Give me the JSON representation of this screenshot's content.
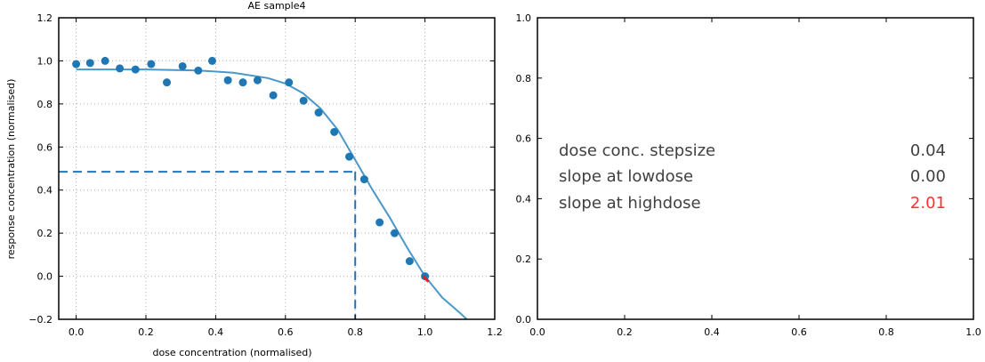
{
  "chart_data": [
    {
      "type": "scatter",
      "title": "AE   sample4",
      "xlabel": "dose concentration (normalised)",
      "ylabel": "response concentration (normalised)",
      "xlim": [
        -0.05,
        1.2
      ],
      "ylim": [
        -0.2,
        1.2
      ],
      "xticks": [
        "0.0",
        "0.2",
        "0.4",
        "0.6",
        "0.8",
        "1.0",
        "1.2"
      ],
      "yticks": [
        "−0.2",
        "0.0",
        "0.2",
        "0.4",
        "0.6",
        "0.8",
        "1.0",
        "1.2"
      ],
      "grid": true,
      "colors": {
        "points": "#1f77b4",
        "fit": "#4a98c9",
        "highlight": "#e02020",
        "dashed": "#1f77b4"
      },
      "series": [
        {
          "kind": "points",
          "x": [
            0.0,
            0.04,
            0.083,
            0.125,
            0.17,
            0.215,
            0.26,
            0.305,
            0.35,
            0.39,
            0.435,
            0.478,
            0.52,
            0.565,
            0.61,
            0.652,
            0.695,
            0.74,
            0.783,
            0.826,
            0.87,
            0.913,
            0.956,
            1.0
          ],
          "y": [
            0.985,
            0.99,
            1.0,
            0.965,
            0.96,
            0.985,
            0.9,
            0.975,
            0.955,
            1.0,
            0.91,
            0.9,
            0.91,
            0.84,
            0.9,
            0.815,
            0.76,
            0.67,
            0.555,
            0.45,
            0.25,
            0.2,
            0.07,
            0.0
          ]
        },
        {
          "kind": "fit-curve",
          "x": [
            0.0,
            0.2,
            0.35,
            0.45,
            0.55,
            0.6,
            0.65,
            0.7,
            0.75,
            0.8,
            0.85,
            0.9,
            0.95,
            1.0,
            1.05,
            1.1,
            1.12
          ],
          "y": [
            0.96,
            0.96,
            0.955,
            0.945,
            0.92,
            0.895,
            0.85,
            0.78,
            0.68,
            0.54,
            0.4,
            0.27,
            0.13,
            0.0,
            -0.1,
            -0.17,
            -0.2
          ]
        },
        {
          "kind": "highlight-segment",
          "x": [
            0.995,
            1.01
          ],
          "y": [
            0.0,
            -0.025
          ]
        },
        {
          "kind": "crosshair",
          "x": 0.8,
          "y": 0.485
        }
      ]
    },
    {
      "type": "table",
      "xlim": [
        0.0,
        1.0
      ],
      "ylim": [
        0.0,
        1.0
      ],
      "xticks": [
        "0.0",
        "0.2",
        "0.4",
        "0.6",
        "0.8",
        "1.0"
      ],
      "yticks": [
        "0.0",
        "0.2",
        "0.4",
        "0.6",
        "0.8",
        "1.0"
      ],
      "grid": false,
      "rows": [
        {
          "label": "dose conc. stepsize",
          "value": "0.04",
          "color": "#404040"
        },
        {
          "label": "slope at lowdose",
          "value": "0.00",
          "color": "#404040"
        },
        {
          "label": "slope at highdose",
          "value": "2.01",
          "color": "#ff3030"
        }
      ]
    }
  ]
}
